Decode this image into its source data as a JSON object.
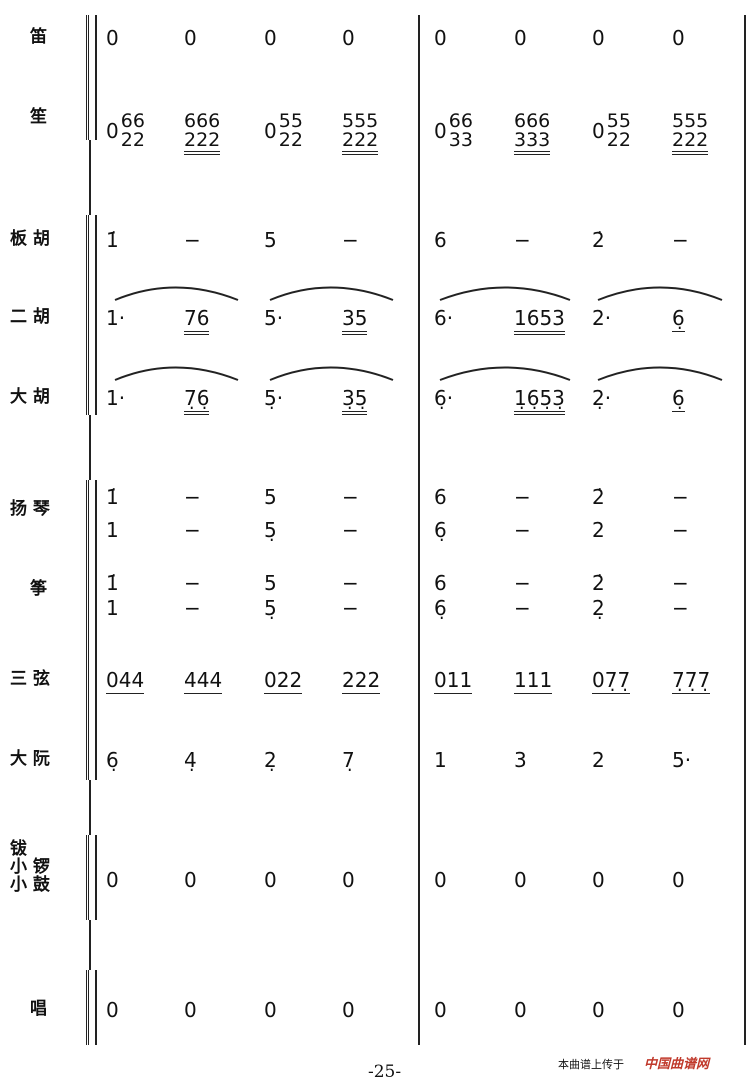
{
  "page_number": "-25-",
  "watermark": {
    "upload_text": "本曲谱上传于",
    "logo_text": "中国曲谱网",
    "logo_color": "#c0392b"
  },
  "rows": [
    {
      "label": "笛",
      "lines": [
        [
          "0",
          "0",
          "0",
          "0",
          "0",
          "0",
          "0",
          "0"
        ]
      ]
    },
    {
      "label": "笙",
      "lines": [
        [
          {
            "pre": "0",
            "top": "66",
            "bottom": "22"
          },
          {
            "top": "666",
            "bottom": "222",
            "ul": 2
          },
          {
            "pre": "0",
            "top": "55",
            "bottom": "22"
          },
          {
            "top": "555",
            "bottom": "222",
            "ul": 2
          },
          {
            "pre": "0",
            "top": "66",
            "bottom": "33"
          },
          {
            "top": "666",
            "bottom": "333",
            "ul": 2
          },
          {
            "pre": "0",
            "top": "55",
            "bottom": "22"
          },
          {
            "top": "555",
            "bottom": "222",
            "ul": 2
          }
        ]
      ]
    },
    {
      "label": "板 胡",
      "lines": [
        [
          "1̇",
          "−",
          "5",
          "−",
          "6",
          "−",
          "2̇",
          "−"
        ]
      ]
    },
    {
      "label": "二 胡",
      "lines": [
        [
          "1·",
          {
            "text": "76",
            "ul": 2
          },
          "5·",
          {
            "text": "35",
            "ul": 2
          },
          "6·",
          {
            "text": "1653",
            "ul": 2
          },
          "2·",
          {
            "text": "6̣",
            "ul": 1
          }
        ]
      ]
    },
    {
      "label": "大 胡",
      "lines": [
        [
          "1·",
          {
            "text": "7̣6̣",
            "ul": 2
          },
          "5̣·",
          {
            "text": "3̣5̣",
            "ul": 2
          },
          "6̣·",
          {
            "text": "1̣6̣5̣3̣",
            "ul": 2
          },
          "2̣·",
          {
            "text": "6̣",
            "ul": 1
          }
        ]
      ]
    },
    {
      "label": "扬 琴",
      "lines": [
        [
          "1̇",
          "−",
          "5",
          "−",
          "6",
          "−",
          "2̇",
          "−"
        ],
        [
          "1",
          "−",
          "5̣",
          "−",
          "6̣",
          "−",
          "2",
          "−"
        ]
      ]
    },
    {
      "label": "筝",
      "lines": [
        [
          "1̇",
          "−",
          "5",
          "−",
          "6",
          "−",
          "2̇",
          "−"
        ],
        [
          "1",
          "−",
          "5̣",
          "−",
          "6̣",
          "−",
          "2̣",
          "−"
        ]
      ]
    },
    {
      "label": "三 弦",
      "lines": [
        [
          {
            "text": "044",
            "ul": 1
          },
          {
            "text": "444",
            "ul": 1
          },
          {
            "text": "022",
            "ul": 1
          },
          {
            "text": "222",
            "ul": 1
          },
          {
            "text": "011",
            "ul": 1
          },
          {
            "text": "111",
            "ul": 1
          },
          {
            "text": "07̣7̣",
            "ul": 1
          },
          {
            "text": "7̣7̣7̣",
            "ul": 1
          }
        ]
      ]
    },
    {
      "label": "大 阮",
      "lines": [
        [
          "6̣",
          "4̣",
          "2̣",
          "7̣",
          "1",
          "3",
          "2",
          "5·"
        ]
      ]
    },
    {
      "label": "钹\n小 锣\n小 鼓",
      "lines": [
        [
          "0",
          "0",
          "0",
          "0",
          "0",
          "0",
          "0",
          "0"
        ]
      ]
    },
    {
      "label": "唱",
      "lines": [
        [
          "0",
          "0",
          "0",
          "0",
          "0",
          "0",
          "0",
          "0"
        ]
      ]
    }
  ]
}
